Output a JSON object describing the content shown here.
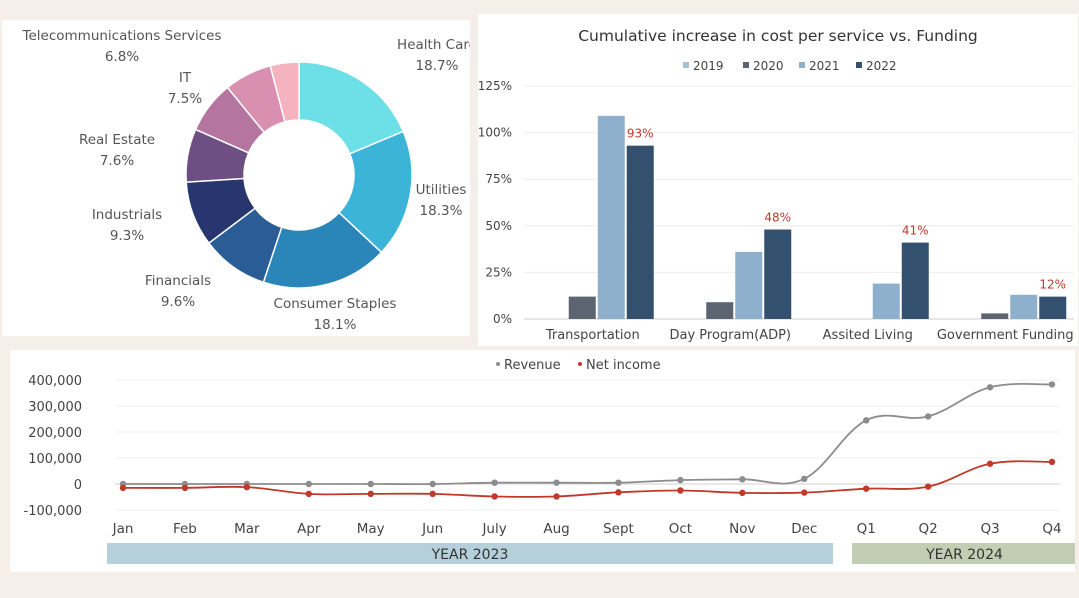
{
  "chart_data": [
    {
      "type": "pie",
      "variant": "donut",
      "slices": [
        {
          "label": "Health Care",
          "value": 18.7,
          "display": "18.7%",
          "color": "#6ce0e6"
        },
        {
          "label": "Utilities",
          "value": 18.3,
          "display": "18.3%",
          "color": "#3cb4d8"
        },
        {
          "label": "Consumer Staples",
          "value": 18.1,
          "display": "18.1%",
          "color": "#2a86b8"
        },
        {
          "label": "Financials",
          "value": 9.6,
          "display": "9.6%",
          "color": "#2a5d96"
        },
        {
          "label": "Industrials",
          "value": 9.3,
          "display": "9.3%",
          "color": "#27366f"
        },
        {
          "label": "Real Estate",
          "value": 7.6,
          "display": "7.6%",
          "color": "#6e4f84"
        },
        {
          "label": "IT",
          "value": 7.5,
          "display": "7.5%",
          "color": "#b476a0"
        },
        {
          "label": "Telecommunications Services",
          "value": 6.8,
          "display": "6.8%",
          "color": "#d98fb0"
        },
        {
          "label": "",
          "value": 4.1,
          "display": "",
          "color": "#f5b2bf"
        }
      ]
    },
    {
      "type": "bar",
      "title": "Cumulative increase in cost per service vs. Funding",
      "categories": [
        "Transportation",
        "Day Program(ADP)",
        "Assited Living",
        "Government Funding"
      ],
      "series": [
        {
          "name": "2019",
          "values": [
            0,
            0,
            0,
            0
          ],
          "color": "#a9bfd4"
        },
        {
          "name": "2020",
          "values": [
            12,
            9,
            0,
            3
          ],
          "color": "#5b6470"
        },
        {
          "name": "2021",
          "values": [
            109,
            36,
            19,
            13
          ],
          "color": "#8fb0cd"
        },
        {
          "name": "2022",
          "values": [
            93,
            48,
            41,
            12
          ],
          "color": "#34506f"
        }
      ],
      "data_labels": {
        "series": "2022",
        "labels": [
          "93%",
          "48%",
          "41%",
          "12%"
        ],
        "color": "#c0392b"
      },
      "yticks": [
        "0%",
        "25%",
        "50%",
        "75%",
        "100%",
        "125%"
      ],
      "ylim": [
        0,
        125
      ],
      "legend": "top",
      "grid": true
    },
    {
      "type": "line",
      "categories": [
        "Jan",
        "Feb",
        "Mar",
        "Apr",
        "May",
        "Jun",
        "July",
        "Aug",
        "Sept",
        "Oct",
        "Nov",
        "Dec",
        "Q1",
        "Q2",
        "Q3",
        "Q4"
      ],
      "series": [
        {
          "name": "Revenue",
          "values": [
            0,
            0,
            0,
            0,
            0,
            0,
            5000,
            5000,
            5000,
            15000,
            18000,
            20000,
            245000,
            260000,
            372000,
            383000
          ],
          "color": "#8c8c8c"
        },
        {
          "name": "Net income",
          "values": [
            -15000,
            -15000,
            -12000,
            -38000,
            -38000,
            -38000,
            -48000,
            -48000,
            -32000,
            -25000,
            -34000,
            -33000,
            -18000,
            -10000,
            78000,
            85000
          ],
          "color": "#c0392b"
        }
      ],
      "yticks": [
        "-100,000",
        "0",
        "100,000",
        "200,000",
        "300,000",
        "400,000"
      ],
      "ylim": [
        -100000,
        400000
      ],
      "legend": "top",
      "grid": true,
      "group_labels": [
        {
          "label": "YEAR 2023",
          "color": "#b5d0da"
        },
        {
          "label": "YEAR 2024",
          "color": "#c3cdb3"
        }
      ]
    }
  ]
}
